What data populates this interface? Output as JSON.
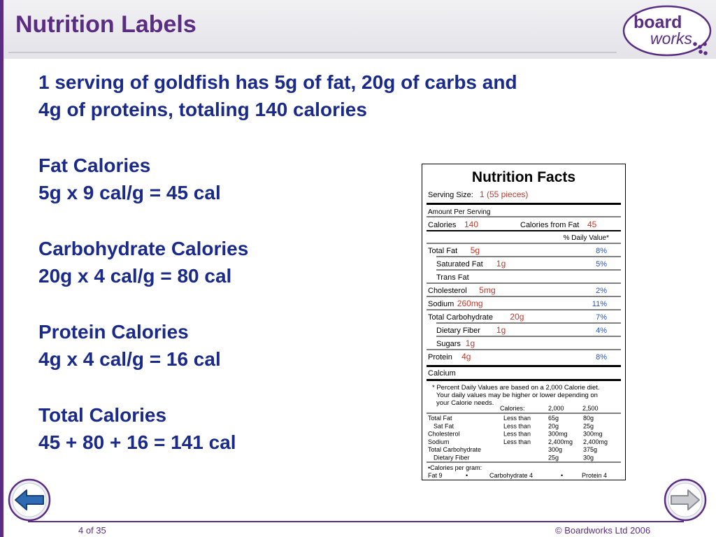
{
  "slide": {
    "title": "Nutrition Labels",
    "logo_text_top": "board",
    "logo_text_bottom": "works",
    "page_label": "4 of 35",
    "copyright": "© Boardworks Ltd 2006"
  },
  "body": {
    "intro_line1": "1 serving of goldfish has 5g of fat, 20g of carbs and",
    "intro_line2": "4g of proteins, totaling 140 calories",
    "sections": [
      {
        "heading": "Fat Calories",
        "formula": "5g x 9 cal/g = 45 cal"
      },
      {
        "heading": "Carbohydrate Calories",
        "formula": "20g x 4 cal/g = 80 cal"
      },
      {
        "heading": "Protein Calories",
        "formula": "4g x 4 cal/g = 16 cal"
      },
      {
        "heading": "Total Calories",
        "formula": "45 + 80 + 16 = 141 cal"
      }
    ]
  },
  "label": {
    "title": "Nutrition Facts",
    "serving_label": "Serving Size:",
    "serving_value": "1 (55 pieces)",
    "amount_per_serving": "Amount Per Serving",
    "calories_label": "Calories",
    "calories_value": "140",
    "calories_fat_label": "Calories from Fat",
    "calories_fat_value": "45",
    "dv_header": "% Daily Value*",
    "rows": [
      {
        "label": "Total Fat",
        "value": "5g",
        "dv": "8%"
      },
      {
        "label": "Saturated Fat",
        "value": "1g",
        "dv": "5%"
      },
      {
        "label": "Trans Fat",
        "value": "",
        "dv": ""
      },
      {
        "label": "Cholesterol",
        "value": "5mg",
        "dv": "2%"
      },
      {
        "label": "Sodium",
        "value": "260mg",
        "dv": "11%"
      },
      {
        "label": "Total Carbohydrate",
        "value": "20g",
        "dv": "7%"
      },
      {
        "label": "Dietary Fiber",
        "value": "1g",
        "dv": "4%"
      },
      {
        "label": "Sugars",
        "value": "1g",
        "dv": ""
      },
      {
        "label": "Protein",
        "value": "4g",
        "dv": "8%"
      }
    ],
    "calcium_label": "Calcium",
    "footnote_1": "* Percent Daily Values are based on a 2,000 Calorie diet.",
    "footnote_2": "Your daily values may be higher or lower depending on",
    "footnote_3": "your Calorie needs.",
    "table_header": {
      "calories": "Calories:",
      "c2000": "2,000",
      "c2500": "2,500"
    },
    "table_rows": [
      {
        "nutrient": "Total Fat",
        "limit": "Less than",
        "v2000": "65g",
        "v2500": "80g"
      },
      {
        "nutrient": "Sat Fat",
        "limit": "Less than",
        "v2000": "20g",
        "v2500": "25g"
      },
      {
        "nutrient": "Cholesterol",
        "limit": "Less than",
        "v2000": "300mg",
        "v2500": "300mg"
      },
      {
        "nutrient": "Sodium",
        "limit": "Less than",
        "v2000": "2,400mg",
        "v2500": "2,400mg"
      },
      {
        "nutrient": "Total Carbohydrate",
        "limit": "",
        "v2000": "300g",
        "v2500": "375g"
      },
      {
        "nutrient": "Dietary Fiber",
        "limit": "",
        "v2000": "25g",
        "v2500": "30g"
      }
    ],
    "per_gram_label": "•Calories per gram:",
    "per_gram_fat": "Fat 9",
    "bullet": "•",
    "per_gram_carb": "Carbohydrate 4",
    "per_gram_protein": "Protein 4"
  }
}
